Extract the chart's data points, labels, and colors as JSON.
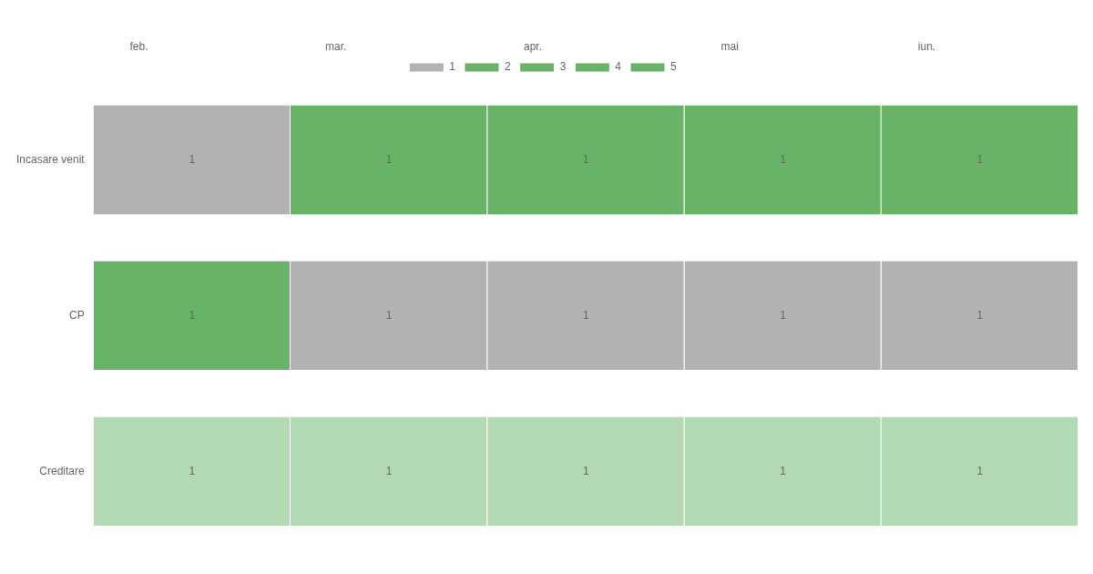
{
  "chart_data": {
    "type": "bar",
    "orientation": "horizontal",
    "stacked": true,
    "legend": "top",
    "data_labels": true,
    "grid": false,
    "categories": [
      "Incasare venit",
      "CP",
      "Creditare"
    ],
    "annotations": [
      "feb.",
      "mar.",
      "apr.",
      "mai",
      "iun."
    ],
    "series": [
      {
        "name": "1",
        "colors": [
          "#b2b2b2",
          "#68b368",
          "#b3d9b3"
        ],
        "values": [
          1,
          1,
          1
        ]
      },
      {
        "name": "2",
        "colors": [
          "#68b368",
          "#b2b2b2",
          "#b3d9b3"
        ],
        "values": [
          1,
          1,
          1
        ]
      },
      {
        "name": "3",
        "colors": [
          "#68b368",
          "#b2b2b2",
          "#b3d9b3"
        ],
        "values": [
          1,
          1,
          1
        ]
      },
      {
        "name": "4",
        "colors": [
          "#68b368",
          "#b2b2b2",
          "#b3d9b3"
        ],
        "values": [
          1,
          1,
          1
        ]
      },
      {
        "name": "5",
        "colors": [
          "#68b368",
          "#b2b2b2",
          "#b3d9b3"
        ],
        "values": [
          1,
          1,
          1
        ]
      }
    ]
  }
}
